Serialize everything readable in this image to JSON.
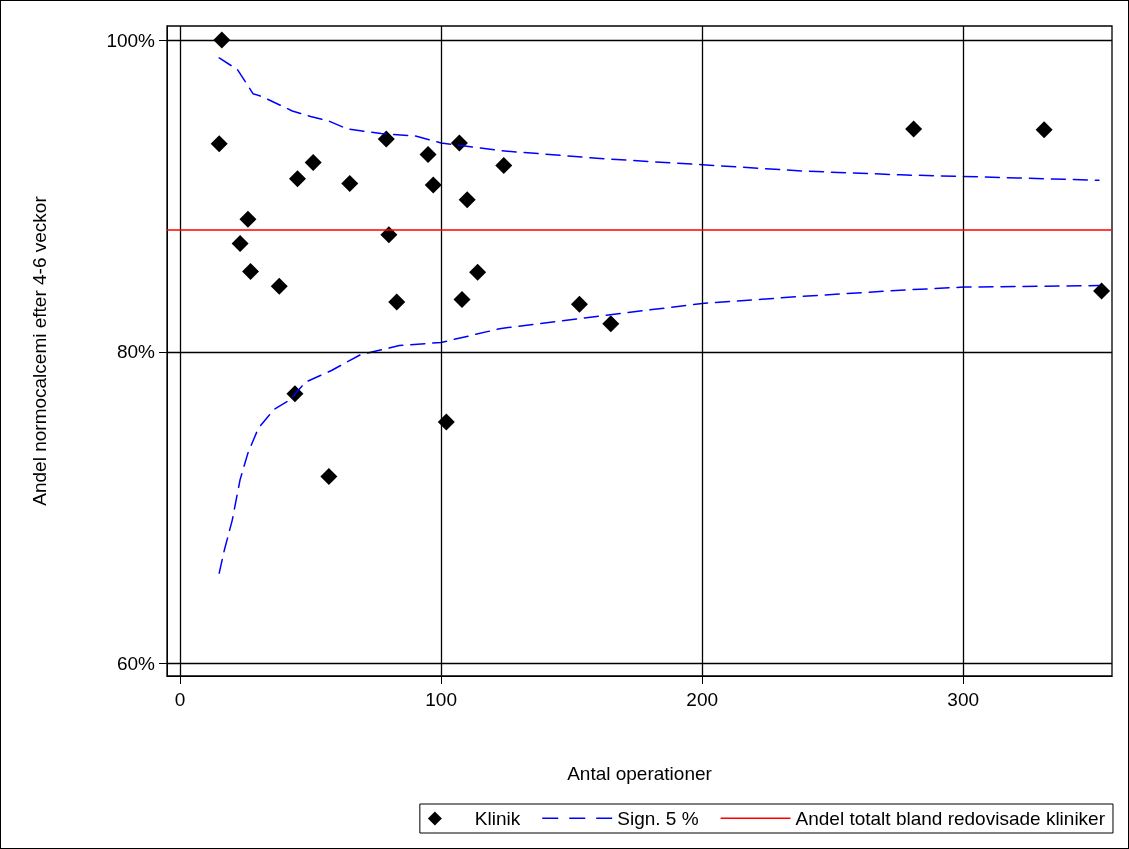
{
  "chart_data": {
    "type": "scatter",
    "xlabel": "Antal operationer",
    "ylabel": "Andel normocalcemi efter 4-6 veckor",
    "xlim": [
      -5,
      357
    ],
    "xticks": [
      0,
      100,
      200,
      300
    ],
    "ylim": [
      59.2,
      100.9
    ],
    "yticks": [
      {
        "value": 60,
        "label": "60%"
      },
      {
        "value": 80,
        "label": "80%"
      },
      {
        "value": 100,
        "label": "100%"
      }
    ],
    "grid": true,
    "legend": "bottom right",
    "series": [
      {
        "name": "Klinik",
        "marker": "diamond",
        "color": "#000000",
        "x": [
          16,
          15,
          26,
          23,
          27,
          38,
          45,
          51,
          44,
          57,
          65,
          79,
          80,
          83,
          95,
          97,
          107,
          110,
          102,
          108,
          114,
          124,
          153,
          165,
          281,
          331,
          353
        ],
        "values": [
          100,
          93.35,
          88.5,
          86.95,
          85.15,
          84.2,
          91.1,
          92.15,
          77.3,
          72.0,
          90.8,
          93.65,
          87.5,
          83.2,
          92.65,
          90.7,
          93.4,
          89.75,
          75.5,
          83.35,
          85.1,
          91.95,
          83.05,
          81.8,
          94.3,
          94.25,
          83.9
        ]
      },
      {
        "name": "Sign. 5 %",
        "type": "line",
        "marker": "none",
        "line_style": "dashed",
        "color": "#0000ff",
        "x": [
          15,
          22,
          28,
          31,
          43,
          50,
          57,
          64,
          77,
          90,
          100,
          123,
          161,
          200,
          238,
          276,
          300,
          352
        ],
        "values": [
          98.85,
          98.1,
          96.55,
          96.4,
          95.45,
          95.1,
          94.8,
          94.3,
          94.0,
          93.85,
          93.4,
          92.9,
          92.4,
          92.0,
          91.6,
          91.35,
          91.25,
          91.0
        ]
      },
      {
        "type": "line",
        "marker": "none",
        "line_style": "dashed",
        "color": "#0000ff",
        "x": [
          15,
          17,
          20,
          23,
          26,
          30,
          36,
          42,
          48,
          58,
          69,
          84,
          100,
          123,
          161,
          200,
          238,
          276,
          300,
          352
        ],
        "values": [
          65.8,
          67.3,
          69.2,
          71.8,
          73.5,
          75.1,
          76.3,
          76.9,
          78.05,
          78.8,
          79.8,
          80.4,
          80.6,
          81.5,
          82.3,
          83.1,
          83.55,
          83.95,
          84.15,
          84.25
        ]
      }
    ],
    "ref_lines": [
      {
        "axis": "y",
        "value": 87.85,
        "label": "Andel totalt bland redovisade kliniker",
        "color": "#ff0000",
        "line_style": "solid"
      }
    ]
  }
}
